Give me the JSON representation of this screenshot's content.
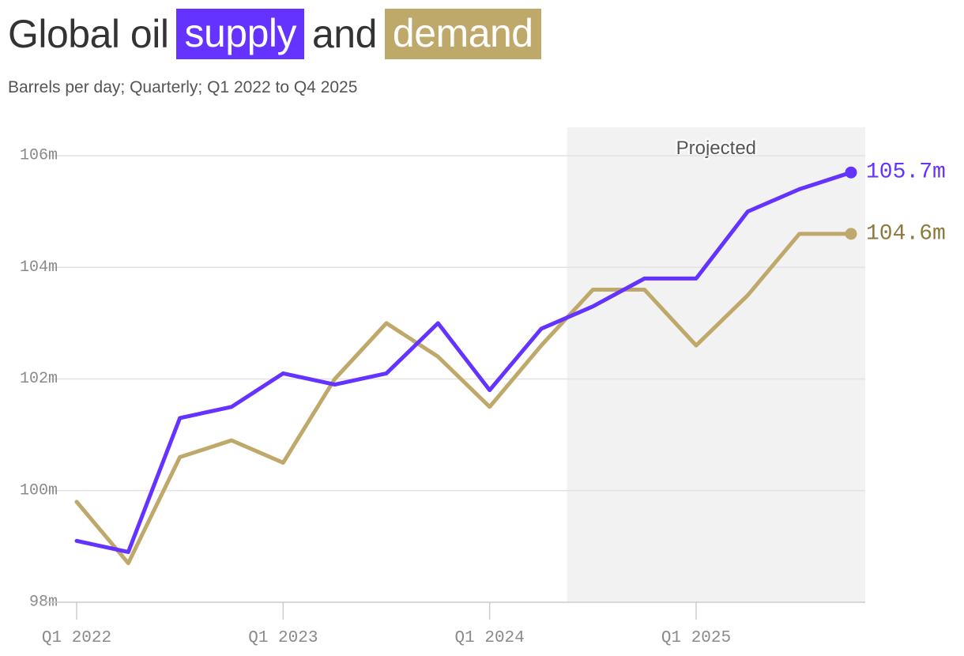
{
  "title": {
    "prefix": "Global oil",
    "supply": "supply",
    "middle": "and",
    "demand": "demand"
  },
  "subtitle": "Barrels per day; Quarterly; Q1 2022 to Q4 2025",
  "colors": {
    "supply": "#6533ff",
    "demand": "#bfa96a",
    "demand_label": "#8a7a3c",
    "projected_band": "#f2f2f2",
    "grid": "#e2e2e2",
    "axis_text": "#8a8a8a"
  },
  "chart_data": {
    "type": "line",
    "title": "Global oil supply and demand",
    "subtitle": "Barrels per day; Quarterly; Q1 2022 to Q4 2025",
    "x": [
      "Q1 2022",
      "Q2 2022",
      "Q3 2022",
      "Q4 2022",
      "Q1 2023",
      "Q2 2023",
      "Q3 2023",
      "Q4 2023",
      "Q1 2024",
      "Q2 2024",
      "Q3 2024",
      "Q4 2024",
      "Q1 2025",
      "Q2 2025",
      "Q3 2025",
      "Q4 2025"
    ],
    "x_ticks": [
      {
        "at": "Q1 2022",
        "label": "Q1 2022"
      },
      {
        "at": "Q1 2023",
        "label": "Q1 2023"
      },
      {
        "at": "Q1 2024",
        "label": "Q1 2024"
      },
      {
        "at": "Q1 2025",
        "label": "Q1 2025"
      }
    ],
    "y_ticks": [
      {
        "value": 98,
        "label": "98m"
      },
      {
        "value": 100,
        "label": "100m"
      },
      {
        "value": 102,
        "label": "102m"
      },
      {
        "value": 104,
        "label": "104m"
      },
      {
        "value": 106,
        "label": "106m"
      }
    ],
    "ylim": [
      98,
      106.5
    ],
    "grid": true,
    "projected": {
      "from": "Q3 2024",
      "to": "Q4 2025",
      "label": "Projected"
    },
    "series": [
      {
        "name": "supply",
        "key": "supply",
        "values": [
          99.1,
          98.9,
          101.3,
          101.5,
          102.1,
          101.9,
          102.1,
          103.0,
          101.8,
          102.9,
          103.3,
          103.8,
          103.8,
          105.0,
          105.4,
          105.7
        ],
        "end_label": "105.7m"
      },
      {
        "name": "demand",
        "key": "demand",
        "values": [
          99.8,
          98.7,
          100.6,
          100.9,
          100.5,
          102.0,
          103.0,
          102.4,
          101.5,
          102.6,
          103.6,
          103.6,
          102.6,
          103.5,
          104.6,
          104.6
        ],
        "end_label": "104.6m"
      }
    ]
  }
}
